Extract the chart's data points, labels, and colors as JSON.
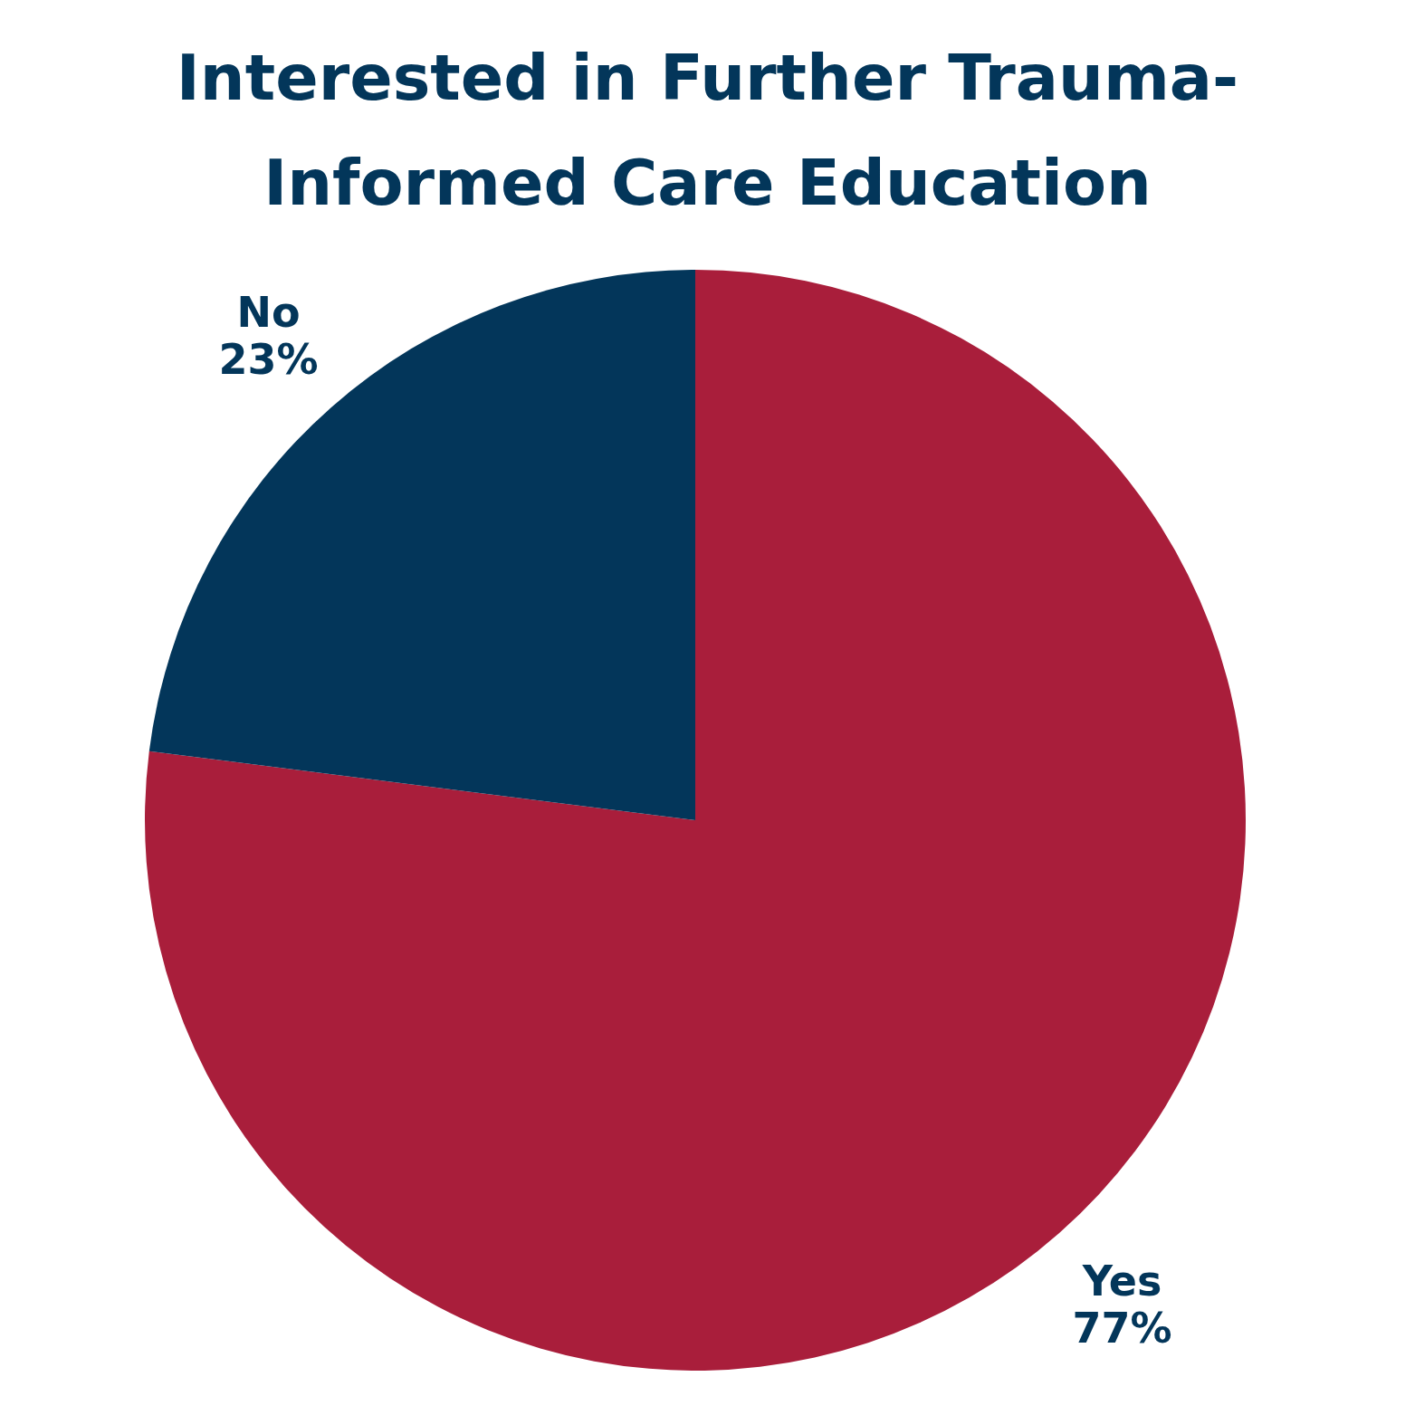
{
  "chart_data": {
    "type": "pie",
    "title": "Interested in Further Trauma-Informed Care Education",
    "categories": [
      "Yes",
      "No"
    ],
    "values": [
      77,
      23
    ],
    "value_labels": [
      "77%",
      "23%"
    ],
    "colors": [
      "#a91e3b",
      "#03365a"
    ],
    "legend": false
  }
}
